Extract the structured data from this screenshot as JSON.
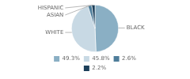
{
  "chart_data": {
    "type": "pie",
    "categories": [
      "BLACK",
      "WHITE",
      "ASIAN",
      "HISPANIC"
    ],
    "values": [
      49.3,
      45.8,
      2.6,
      2.2
    ],
    "value_labels": [
      "49.3%",
      "45.8%",
      "2.6%",
      "2.2%"
    ],
    "colors": [
      "#8AAFC4",
      "#C8D9E4",
      "#4E7D9A",
      "#1C3F5A"
    ],
    "legend": "bottom"
  }
}
